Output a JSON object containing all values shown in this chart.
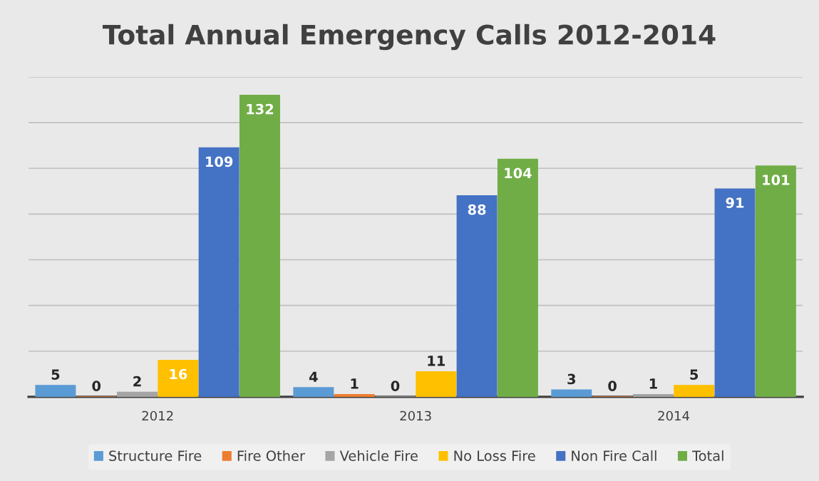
{
  "chart_data": {
    "type": "bar",
    "title": "Total Annual Emergency Calls 2012-2014",
    "categories": [
      "2012",
      "2013",
      "2014"
    ],
    "series": [
      {
        "name": "Structure Fire",
        "color": "#5b9bd5",
        "values": [
          5,
          4,
          3
        ]
      },
      {
        "name": "Fire Other",
        "color": "#ed7d31",
        "values": [
          0,
          1,
          0
        ]
      },
      {
        "name": "Vehicle Fire",
        "color": "#a5a5a5",
        "values": [
          2,
          0,
          1
        ]
      },
      {
        "name": "No Loss Fire",
        "color": "#ffc000",
        "values": [
          16,
          11,
          5
        ]
      },
      {
        "name": "Non Fire Call",
        "color": "#4472c4",
        "values": [
          109,
          88,
          91
        ]
      },
      {
        "name": "Total",
        "color": "#70ad47",
        "values": [
          132,
          104,
          101
        ]
      }
    ],
    "ylim": [
      0,
      140
    ],
    "yticks": [
      {
        "value": 0,
        "label": null
      },
      {
        "value": 20,
        "label": null
      },
      {
        "value": 40,
        "label": null
      },
      {
        "value": 60,
        "label": null
      },
      {
        "value": 80,
        "label": null
      },
      {
        "value": 100,
        "label": null
      },
      {
        "value": 120,
        "label": null
      },
      {
        "value": 140,
        "label": null
      }
    ],
    "tick_labels": "x",
    "grid": "y",
    "legend": "bottom",
    "data_labels": true
  }
}
